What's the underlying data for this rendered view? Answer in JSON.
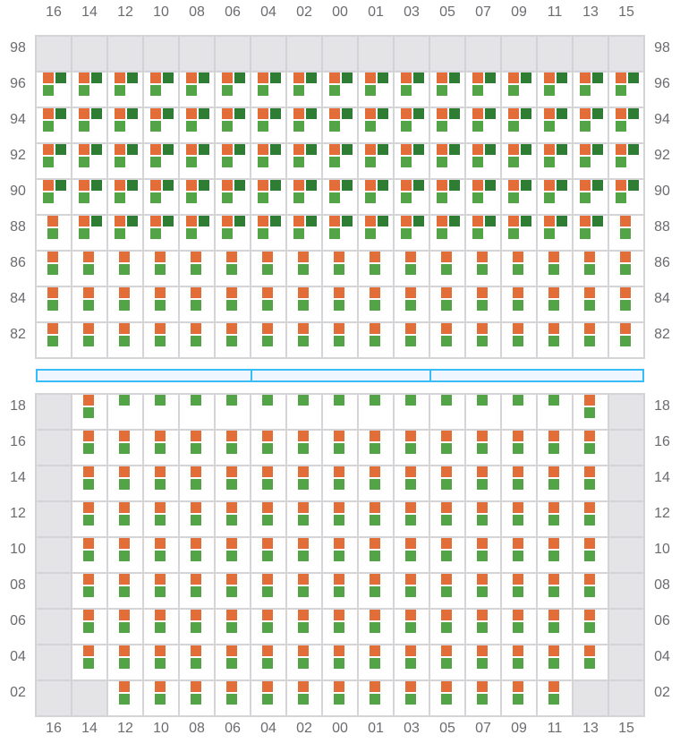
{
  "columns": [
    "16",
    "14",
    "12",
    "10",
    "08",
    "06",
    "04",
    "02",
    "00",
    "01",
    "03",
    "05",
    "07",
    "09",
    "11",
    "13",
    "15"
  ],
  "legend_codes": {
    "F": "orange+dark-green+green",
    "O": "orange+green",
    "G": "green",
    "X": "unavailable"
  },
  "colors": {
    "orange": "#e36d38",
    "dark_green": "#2e7d32",
    "green": "#52a447",
    "unavailable": "#e4e4e7",
    "grid_line": "#d4d4d8",
    "bar_border": "#38bdf8",
    "bar_fill": "#eff6ff"
  },
  "top_section": {
    "rows": [
      {
        "label": "98",
        "cells": "XXXXXXXXXXXXXXXXX"
      },
      {
        "label": "96",
        "cells": "FFFFFFFFFFFFFFFFF"
      },
      {
        "label": "94",
        "cells": "FFFFFFFFFFFFFFFFF"
      },
      {
        "label": "92",
        "cells": "FFFFFFFFFFFFFFFFF"
      },
      {
        "label": "90",
        "cells": "FFFFFFFFFFFFFFFFF"
      },
      {
        "label": "88",
        "cells": "OFFFFFFFFFFFFFFFO"
      },
      {
        "label": "86",
        "cells": "OOOOOOOOOOOOOOOOO"
      },
      {
        "label": "84",
        "cells": "OOOOOOOOOOOOOOOOO"
      },
      {
        "label": "82",
        "cells": "OOOOOOOOOOOOOOOOO"
      }
    ]
  },
  "divider_segments": 3,
  "bottom_section": {
    "rows": [
      {
        "label": "18",
        "cells": "XOGGGGGGGGGGGGGOX"
      },
      {
        "label": "16",
        "cells": "XOOOOOOOOOOOOOOOX"
      },
      {
        "label": "14",
        "cells": "XOOOOOOOOOOOOOOOX"
      },
      {
        "label": "12",
        "cells": "XOOOOOOOOOOOOOOOX"
      },
      {
        "label": "10",
        "cells": "XOOOOOOOOOOOOOOOX"
      },
      {
        "label": "08",
        "cells": "XOOOOOOOOOOOOOOOX"
      },
      {
        "label": "06",
        "cells": "XOOOOOOOOOOOOOOOX"
      },
      {
        "label": "04",
        "cells": "XOOOOOOOOOOOOOOOX"
      },
      {
        "label": "02",
        "cells": "XXOOOOOOOOOOOOOXX"
      }
    ]
  }
}
